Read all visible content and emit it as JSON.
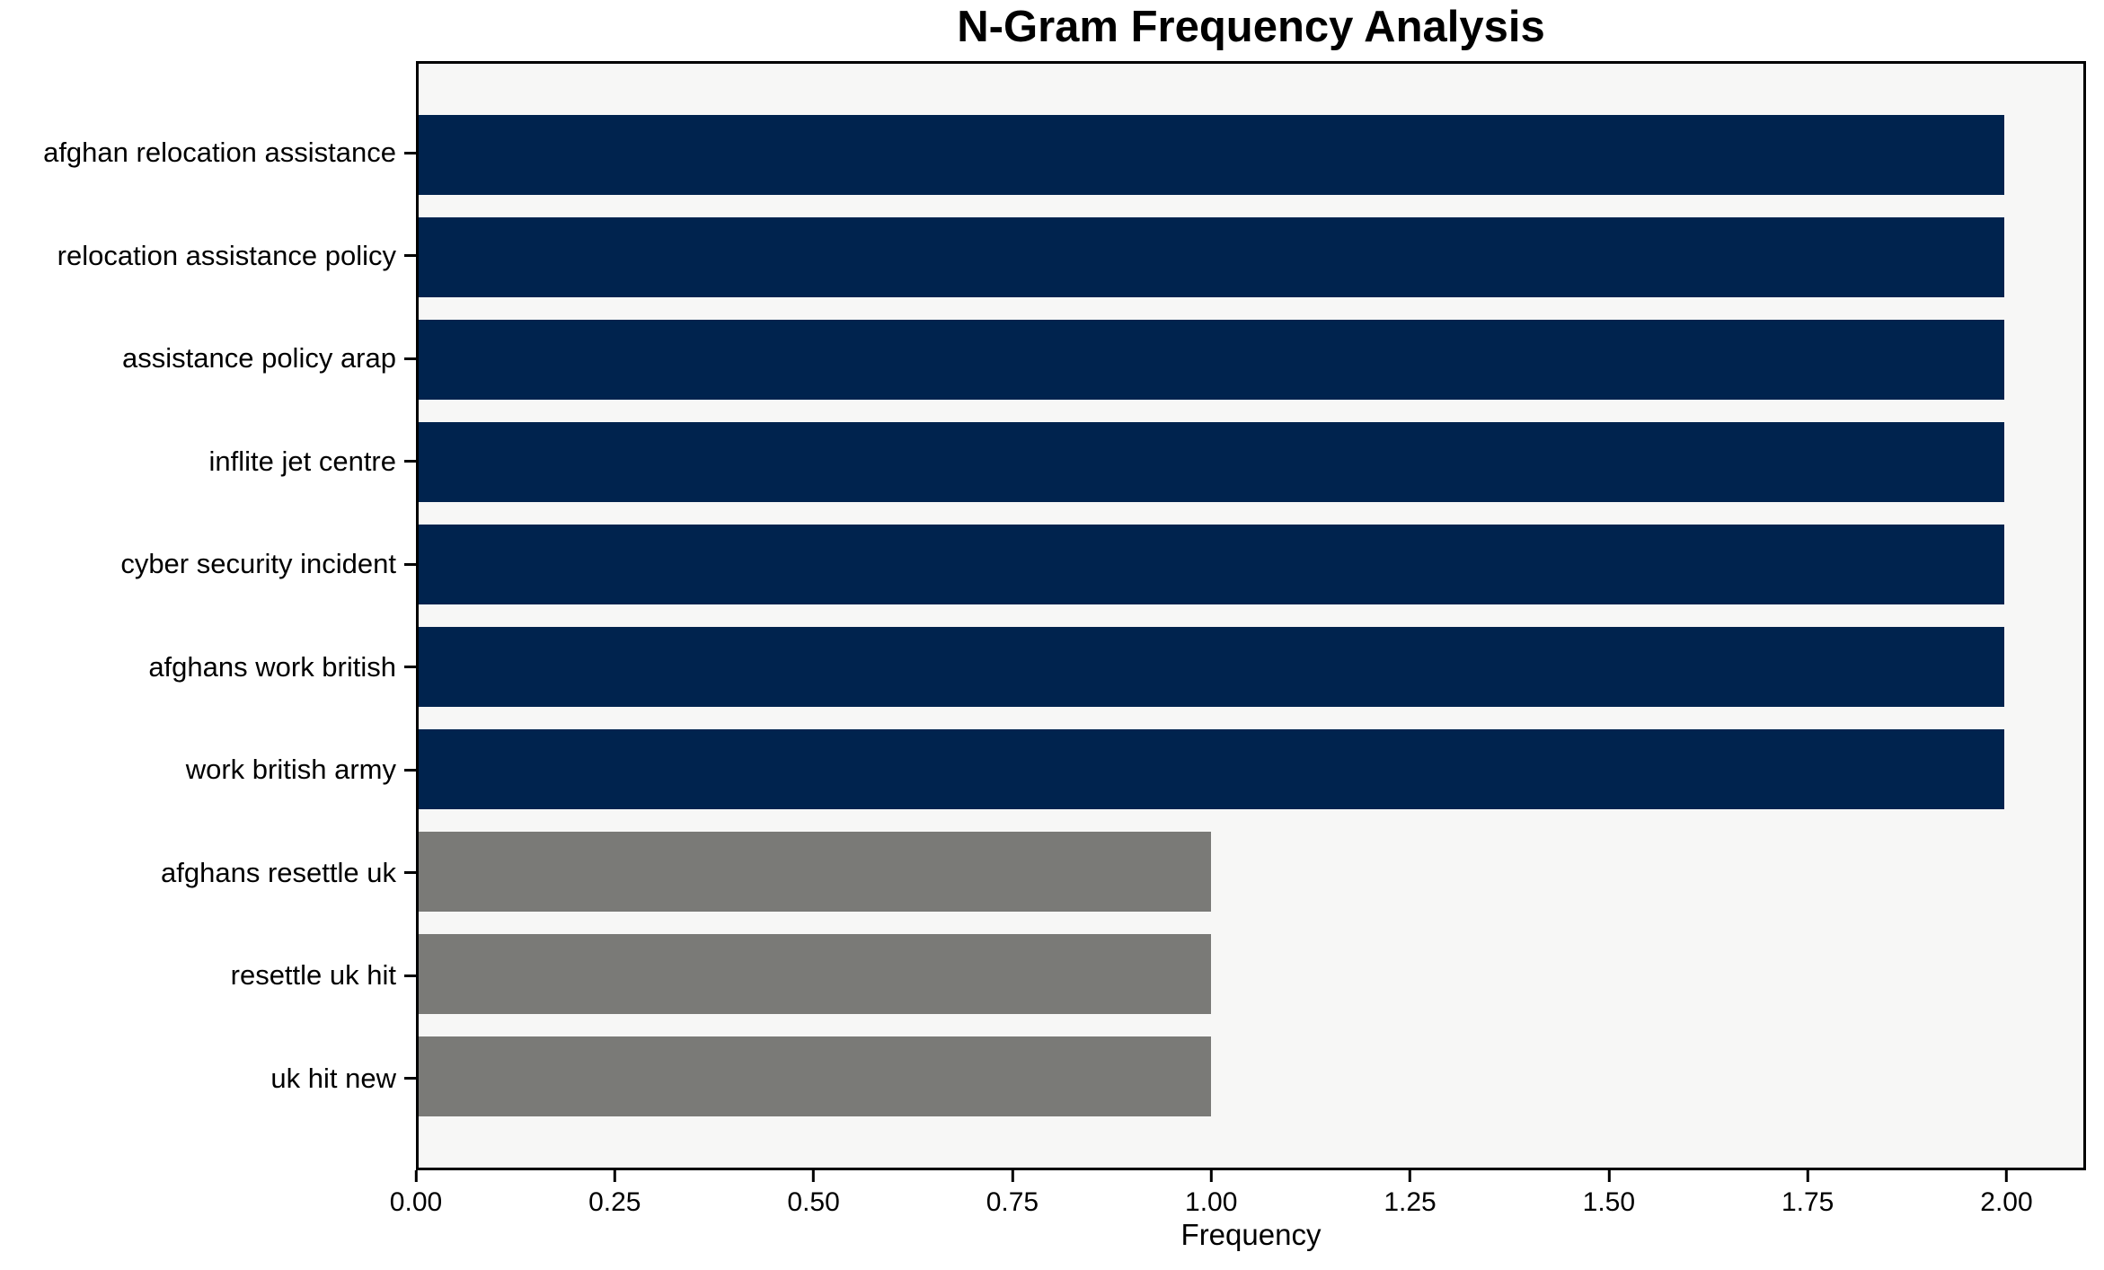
{
  "chart_data": {
    "type": "bar",
    "orientation": "horizontal",
    "title": "N-Gram Frequency Analysis",
    "xlabel": "Frequency",
    "ylabel": "",
    "xlim": [
      0,
      2.1
    ],
    "grid": false,
    "legend": "none",
    "plot_bg_color": "#f7f7f6",
    "figure_bg_color": "#ffffff",
    "spine_color": "#000000",
    "categories": [
      "afghan relocation assistance",
      "relocation assistance policy",
      "assistance policy arap",
      "inflite jet centre",
      "cyber security incident",
      "afghans work british",
      "work british army",
      "afghans resettle uk",
      "resettle uk hit",
      "uk hit new"
    ],
    "values": [
      2,
      2,
      2,
      2,
      2,
      2,
      2,
      1,
      1,
      1
    ],
    "bars": [
      {
        "label": "afghan relocation assistance",
        "value": 2,
        "color": "#00234e"
      },
      {
        "label": "relocation assistance policy",
        "value": 2,
        "color": "#00234e"
      },
      {
        "label": "assistance policy arap",
        "value": 2,
        "color": "#00234e"
      },
      {
        "label": "inflite jet centre",
        "value": 2,
        "color": "#00234e"
      },
      {
        "label": "cyber security incident",
        "value": 2,
        "color": "#00234e"
      },
      {
        "label": "afghans work british",
        "value": 2,
        "color": "#00234e"
      },
      {
        "label": "work british army",
        "value": 2,
        "color": "#00234e"
      },
      {
        "label": "afghans resettle uk",
        "value": 1,
        "color": "#7a7a77"
      },
      {
        "label": "resettle uk hit",
        "value": 1,
        "color": "#7a7a77"
      },
      {
        "label": "uk hit new",
        "value": 1,
        "color": "#7a7a77"
      }
    ],
    "x_ticks": [
      {
        "value": 0.0,
        "label": "0.00"
      },
      {
        "value": 0.25,
        "label": "0.25"
      },
      {
        "value": 0.5,
        "label": "0.50"
      },
      {
        "value": 0.75,
        "label": "0.75"
      },
      {
        "value": 1.0,
        "label": "1.00"
      },
      {
        "value": 1.25,
        "label": "1.25"
      },
      {
        "value": 1.5,
        "label": "1.50"
      },
      {
        "value": 1.75,
        "label": "1.75"
      },
      {
        "value": 2.0,
        "label": "2.00"
      }
    ]
  }
}
